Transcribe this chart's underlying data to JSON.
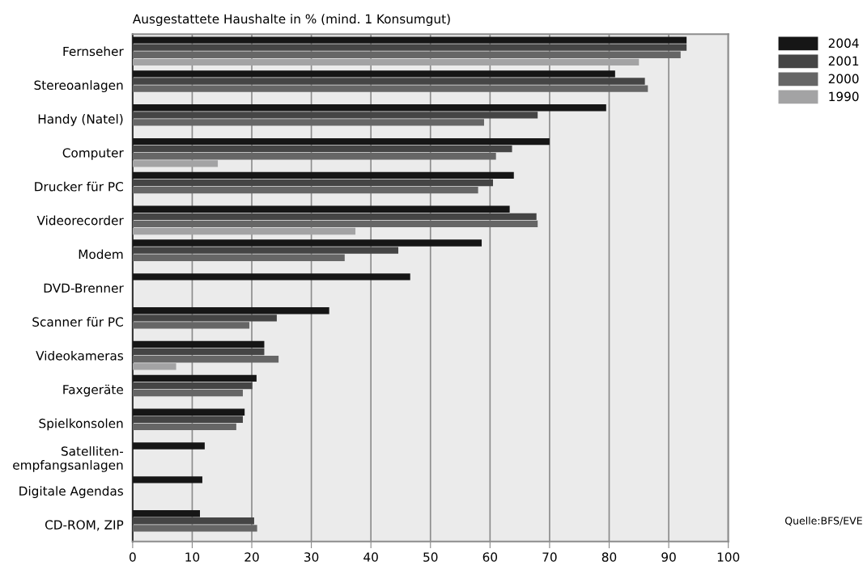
{
  "chart_data": {
    "type": "bar",
    "orientation": "horizontal",
    "title": "Ausgestattete Haushalte in % (mind. 1 Konsumgut)",
    "categories": [
      "Fernseher",
      "Stereoanlagen",
      "Handy (Natel)",
      "Computer",
      "Drucker für PC",
      "Videorecorder",
      "Modem",
      "DVD-Brenner",
      "Scanner für PC",
      "Videokameras",
      "Faxgeräte",
      "Spielkonsolen",
      "Satelliten-\nempfangsanlagen",
      "Digitale Agendas",
      "CD-ROM, ZIP"
    ],
    "series": [
      {
        "name": "2004",
        "color": "#161616",
        "values": [
          93,
          81,
          79.5,
          70,
          64,
          63.3,
          58.6,
          46.6,
          33,
          22.1,
          20.8,
          18.8,
          12.1,
          11.7,
          11.3
        ]
      },
      {
        "name": "2001",
        "color": "#454545",
        "values": [
          93,
          86,
          68,
          63.7,
          60.5,
          67.8,
          44.6,
          null,
          24.2,
          22.1,
          20.1,
          18.5,
          null,
          null,
          20.4
        ]
      },
      {
        "name": "2000",
        "color": "#666666",
        "values": [
          92,
          86.5,
          59,
          61,
          58,
          68,
          35.6,
          null,
          19.6,
          24.5,
          18.5,
          17.4,
          null,
          null,
          20.9
        ]
      },
      {
        "name": "1990",
        "color": "#a3a3a4",
        "values": [
          85,
          null,
          null,
          14.3,
          null,
          37.4,
          null,
          null,
          null,
          7.3,
          null,
          null,
          null,
          null,
          null
        ]
      }
    ],
    "xlim": [
      0,
      100
    ],
    "xticks": [
      0,
      10,
      20,
      30,
      40,
      50,
      60,
      70,
      80,
      90,
      100
    ],
    "grid": "x",
    "legend": "top right",
    "annotations": [
      "Quelle:BFS/EVE"
    ]
  }
}
